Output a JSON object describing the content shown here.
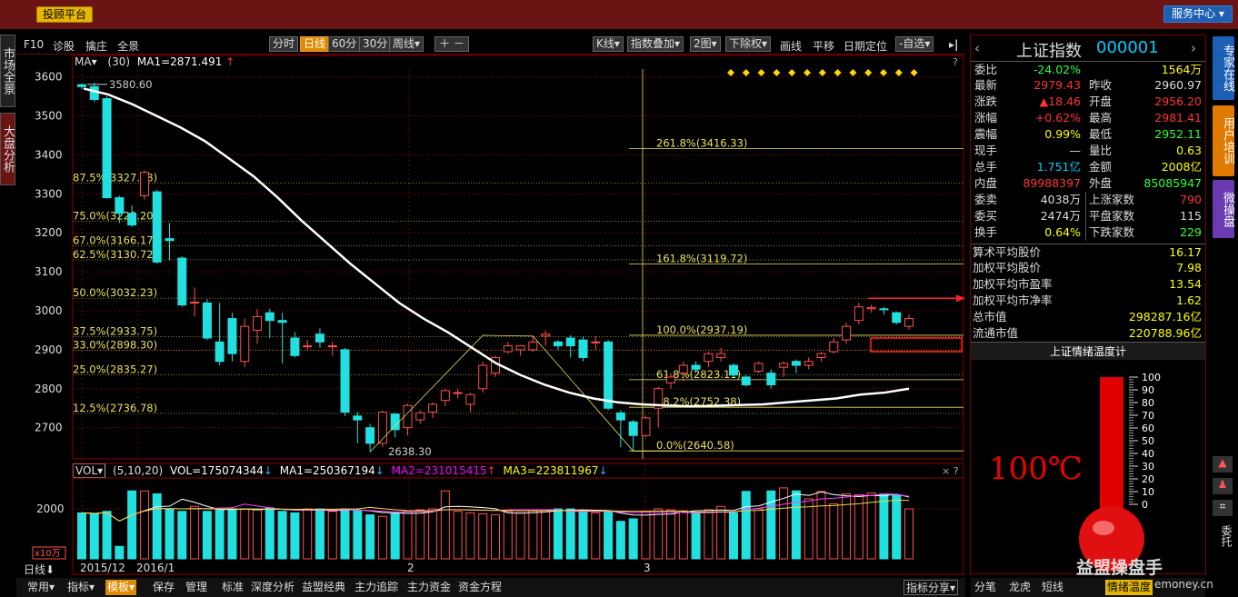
{
  "app": {
    "platform_button": "投顾平台",
    "service_center": "服务中心"
  },
  "left_tabs": {
    "market_overview": "市场全景",
    "market_analysis": "大盘分析"
  },
  "toolbar": {
    "f10": "F10",
    "diagnose": "诊股",
    "pick": "擒庄",
    "full": "全景",
    "periods": [
      "分时",
      "日线",
      "60分",
      "30分",
      "周线▾"
    ],
    "active_period": "日线",
    "right_items": [
      "K线▾",
      "指数叠加▾",
      "2图▾",
      "下除权▾",
      "画线",
      "平移",
      "日期定位",
      "-自选▾"
    ]
  },
  "ma_header": {
    "label": "MA▾",
    "params": "(30)",
    "ma1": "MA1=2871.491",
    "arrow": "↑"
  },
  "vol_header": {
    "label": "VOL▾",
    "params": "(5,10,20)",
    "vol": "VOL=175074344",
    "ma1": "MA1=250367194",
    "ma2": "MA2=231015415",
    "ma3": "MA3=223811967"
  },
  "chart_data": {
    "type": "candlestick",
    "title": "上证指数 000001",
    "ylim": [
      2620,
      3620
    ],
    "yticks": [
      2700,
      2800,
      2900,
      3000,
      3100,
      3200,
      3300,
      3400,
      3500,
      3600
    ],
    "xlabels": [
      "2015/12",
      "2016/1",
      "2",
      "3"
    ],
    "candles": [
      [
        3580,
        3575,
        3583,
        3568
      ],
      [
        3575,
        3542,
        3585,
        3535
      ],
      [
        3544,
        3290,
        3550,
        3288
      ],
      [
        3290,
        3250,
        3295,
        3225
      ],
      [
        3250,
        3220,
        3270,
        3215
      ],
      [
        3295,
        3355,
        3360,
        3285
      ],
      [
        3305,
        3125,
        3310,
        3120
      ],
      [
        3185,
        3180,
        3225,
        3130
      ],
      [
        3135,
        3015,
        3140,
        3010
      ],
      [
        3020,
        3022,
        3060,
        2985
      ],
      [
        3020,
        2930,
        3030,
        2925
      ],
      [
        2920,
        2870,
        3020,
        2860
      ],
      [
        2980,
        2890,
        2995,
        2870
      ],
      [
        2870,
        2960,
        2980,
        2855
      ],
      [
        2950,
        2985,
        3005,
        2915
      ],
      [
        2995,
        2975,
        3005,
        2930
      ],
      [
        2975,
        2970,
        2995,
        2865
      ],
      [
        2930,
        2885,
        2945,
        2880
      ],
      [
        2910,
        2910,
        2925,
        2900
      ],
      [
        2940,
        2920,
        2955,
        2905
      ],
      [
        2910,
        2910,
        2920,
        2885
      ],
      [
        2900,
        2740,
        2905,
        2730
      ],
      [
        2730,
        2720,
        2740,
        2660
      ],
      [
        2700,
        2660,
        2710,
        2638
      ],
      [
        2660,
        2740,
        2745,
        2650
      ],
      [
        2735,
        2695,
        2738,
        2675
      ],
      [
        2700,
        2757,
        2762,
        2680
      ],
      [
        2720,
        2738,
        2745,
        2710
      ],
      [
        2740,
        2760,
        2765,
        2725
      ],
      [
        2770,
        2795,
        2800,
        2755
      ],
      [
        2790,
        2790,
        2800,
        2775
      ],
      [
        2760,
        2785,
        2790,
        2740
      ],
      [
        2800,
        2860,
        2870,
        2790
      ],
      [
        2840,
        2880,
        2885,
        2830
      ],
      [
        2895,
        2910,
        2920,
        2890
      ],
      [
        2900,
        2910,
        2912,
        2885
      ],
      [
        2900,
        2920,
        2935,
        2895
      ],
      [
        2935,
        2940,
        2950,
        2910
      ],
      [
        2920,
        2910,
        2925,
        2900
      ],
      [
        2930,
        2910,
        2937,
        2880
      ],
      [
        2925,
        2880,
        2935,
        2870
      ],
      [
        2920,
        2920,
        2935,
        2900
      ],
      [
        2920,
        2750,
        2925,
        2745
      ],
      [
        2738,
        2720,
        2745,
        2650
      ],
      [
        2715,
        2680,
        2720,
        2640
      ],
      [
        2680,
        2725,
        2730,
        2675
      ],
      [
        2750,
        2800,
        2805,
        2700
      ],
      [
        2815,
        2830,
        2840,
        2800
      ],
      [
        2840,
        2860,
        2870,
        2820
      ],
      [
        2860,
        2850,
        2870,
        2840
      ],
      [
        2870,
        2890,
        2895,
        2855
      ],
      [
        2880,
        2890,
        2905,
        2870
      ],
      [
        2860,
        2835,
        2865,
        2830
      ],
      [
        2830,
        2810,
        2835,
        2805
      ],
      [
        2845,
        2865,
        2870,
        2840
      ],
      [
        2840,
        2810,
        2850,
        2800
      ],
      [
        2855,
        2865,
        2870,
        2830
      ],
      [
        2870,
        2860,
        2875,
        2840
      ],
      [
        2860,
        2870,
        2880,
        2850
      ],
      [
        2880,
        2890,
        2895,
        2870
      ],
      [
        2895,
        2920,
        2930,
        2890
      ],
      [
        2925,
        2960,
        2970,
        2915
      ],
      [
        2975,
        3010,
        3020,
        2965
      ],
      [
        3005,
        3008,
        3015,
        2995
      ],
      [
        3005,
        3003,
        3010,
        2990
      ],
      [
        2995,
        2970,
        2998,
        2965
      ],
      [
        2960,
        2980,
        2990,
        2952
      ]
    ],
    "ma30": [
      3570,
      3555,
      3530,
      3500,
      3470,
      3435,
      3390,
      3345,
      3290,
      3230,
      3175,
      3120,
      3070,
      3020,
      2980,
      2945,
      2905,
      2865,
      2835,
      2810,
      2790,
      2775,
      2765,
      2760,
      2757,
      2755,
      2756,
      2758,
      2760,
      2765,
      2770,
      2775,
      2785,
      2790,
      2800
    ],
    "volumes": [
      0.92,
      0.9,
      0.95,
      0.25,
      1.36,
      1.36,
      1.3,
      1.0,
      0.95,
      1.05,
      0.95,
      0.98,
      1.0,
      1.0,
      0.98,
      1.02,
      0.95,
      0.92,
      1.0,
      1.0,
      0.95,
      1.0,
      0.96,
      0.88,
      0.85,
      0.9,
      0.96,
      0.98,
      1.0,
      1.36,
      0.95,
      0.92,
      0.9,
      0.88,
      0.95,
      0.92,
      0.96,
      0.98,
      1.0,
      1.0,
      0.96,
      0.92,
      0.96,
      0.75,
      0.8,
      0.95,
      1.0,
      0.98,
      0.96,
      0.92,
      0.98,
      1.05,
      0.92,
      1.35,
      1.0,
      1.36,
      1.42,
      1.36,
      1.2,
      1.35,
      1.1,
      1.3,
      1.28,
      1.32,
      1.3,
      1.28,
      1.0
    ],
    "fib_left": [
      [
        "87.5%(3327.68)",
        3327.68
      ],
      [
        "75.0%(3229.20)",
        3229.2
      ],
      [
        "67.0%(3166.17)",
        3166.17
      ],
      [
        "62.5%(3130.72)",
        3130.72
      ],
      [
        "50.0%(3032.23)",
        3032.23
      ],
      [
        "37.5%(2933.75)",
        2933.75
      ],
      [
        "33.0%(2898.30)",
        2898.3
      ],
      [
        "25.0%(2835.27)",
        2835.27
      ],
      [
        "12.5%(2736.78)",
        2736.78
      ]
    ],
    "fib_right": [
      [
        "261.8%(3416.33)",
        3416.33
      ],
      [
        "161.8%(3119.72)",
        3119.72
      ],
      [
        "100.0%(2937.19)",
        2937.19
      ],
      [
        "61.8%(2823.11)",
        2823.11
      ],
      [
        "38.2%(2752.38)",
        2752.38
      ],
      [
        "0.0%(2640.58)",
        2640.58
      ]
    ],
    "high_label": "3580.60",
    "low_label": "2638.30",
    "vol_ytick": "2000",
    "vol_unit": "x10万"
  },
  "quote": {
    "name": "上证指数",
    "code": "000001",
    "rows": [
      [
        "委比",
        "-24.02%",
        "",
        "1564万"
      ],
      [
        "最新",
        "2979.43",
        "昨收",
        "2960.97"
      ],
      [
        "涨跌",
        "▲18.46",
        "开盘",
        "2956.20"
      ],
      [
        "涨幅",
        "+0.62%",
        "最高",
        "2981.41"
      ],
      [
        "震幅",
        "0.99%",
        "最低",
        "2952.11"
      ],
      [
        "现手",
        "—",
        "量比",
        "0.63"
      ],
      [
        "总手",
        "1.751亿",
        "金额",
        "2008亿"
      ],
      [
        "内盘",
        "89988397",
        "外盘",
        "85085947"
      ],
      [
        "委卖",
        "4038万",
        "上涨家数",
        "790"
      ],
      [
        "委买",
        "2474万",
        "平盘家数",
        "115"
      ],
      [
        "换手",
        "0.64%",
        "下跌家数",
        "229"
      ]
    ],
    "stats": [
      [
        "算术平均股价",
        "16.17"
      ],
      [
        "加权平均股价",
        "7.98"
      ],
      [
        "加权平均市盈率",
        "13.54"
      ],
      [
        "加权平均市净率",
        "1.62"
      ],
      [
        "总市值",
        "298287.16亿"
      ],
      [
        "流通市值",
        "220788.96亿"
      ]
    ]
  },
  "sentiment": {
    "title": "上证情绪温度计",
    "value": "100℃",
    "ticks": [
      "100",
      "90",
      "80",
      "70",
      "60",
      "50",
      "40",
      "30",
      "20",
      "10",
      "0"
    ],
    "level": 1.0
  },
  "right_tabs": [
    "专家在线",
    "用户培训",
    "微操盘"
  ],
  "right_icons": [
    "委托"
  ],
  "bottom": {
    "daily": "日线",
    "items": [
      "常用▾",
      "指标▾",
      "模板▾",
      "保存",
      "管理",
      "标准",
      "深度分析",
      "益盟经典",
      "主力追踪",
      "主力资金",
      "资金方程"
    ],
    "indicator_share": "指标分享▾",
    "right_items": [
      "分笔",
      "龙虎",
      "短线",
      "情绪温度"
    ],
    "watermark": "益盟操盘手",
    "watermark_url": "emoney.cn"
  }
}
